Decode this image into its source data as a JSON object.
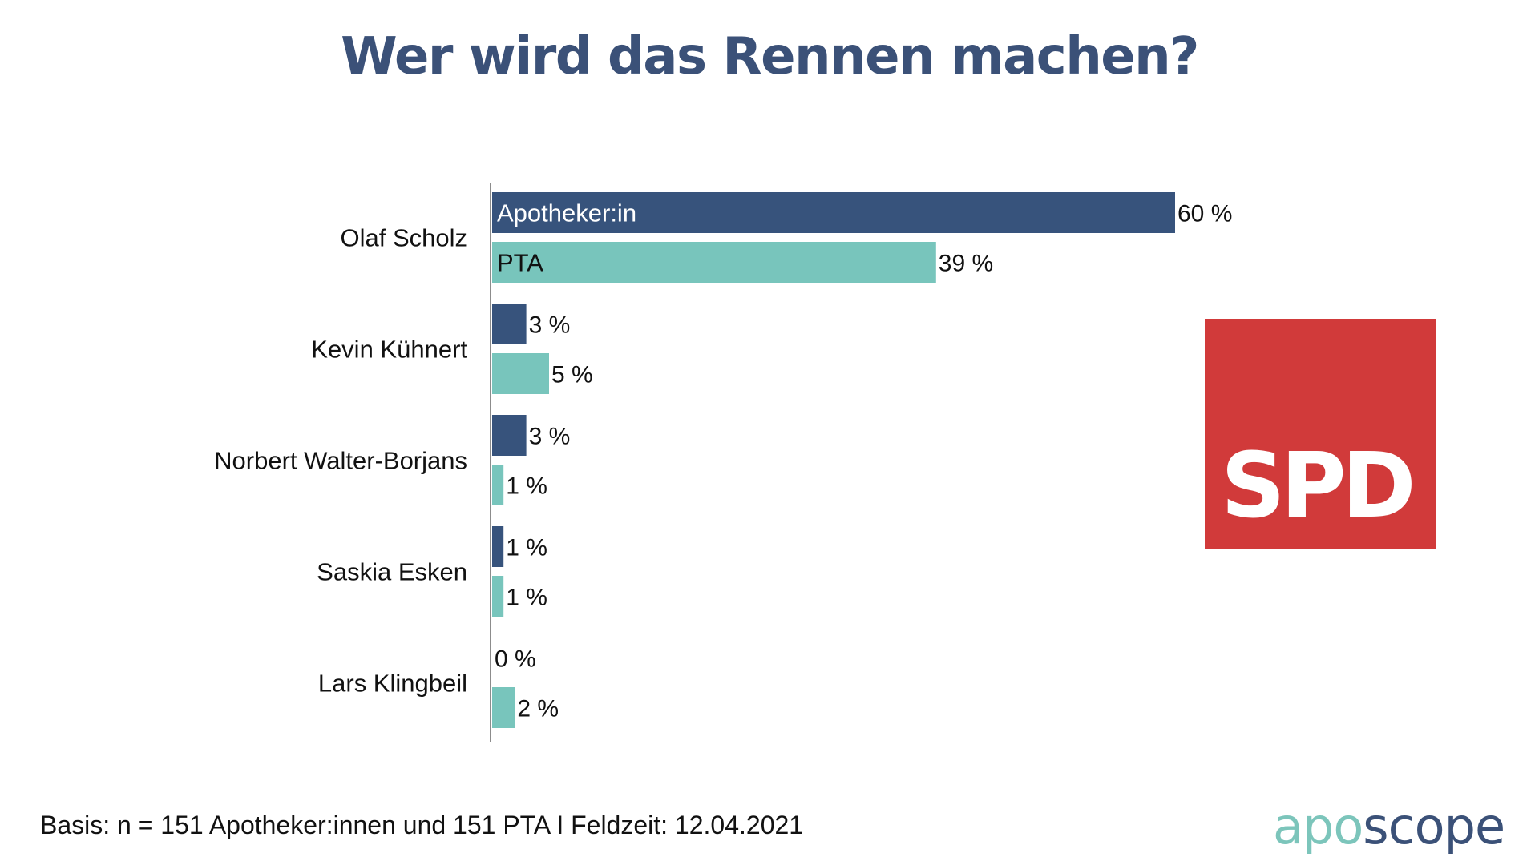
{
  "colors": {
    "apotheker": "#37537c",
    "pta": "#78c5bc",
    "title": "#3b5178",
    "spd_red": "#d13a3a"
  },
  "logo": {
    "spd_text": "SPD",
    "brand_part1": "apo",
    "brand_part2": "scope"
  },
  "footer": "Basis: n = 151 Apotheker:innen und 151 PTA I Feldzeit: 12.04.2021",
  "chart_data": {
    "type": "bar",
    "orientation": "horizontal",
    "title": "Wer wird das Rennen machen?",
    "xlabel": "",
    "ylabel": "",
    "xlim": [
      0,
      60
    ],
    "grid": false,
    "legend": "inside-first-bars",
    "categories": [
      "Olaf Scholz",
      "Kevin Kühnert",
      "Norbert Walter-Borjans",
      "Saskia Esken",
      "Lars Klingbeil"
    ],
    "series": [
      {
        "name": "Apotheker:in",
        "values": [
          60,
          3,
          3,
          1,
          0
        ],
        "labels": [
          "60 %",
          "3 %",
          "3 %",
          "1 %",
          "0 %"
        ]
      },
      {
        "name": "PTA",
        "values": [
          39,
          5,
          1,
          1,
          2
        ],
        "labels": [
          "39 %",
          "5 %",
          "1 %",
          "1 %",
          "2 %"
        ]
      }
    ]
  }
}
